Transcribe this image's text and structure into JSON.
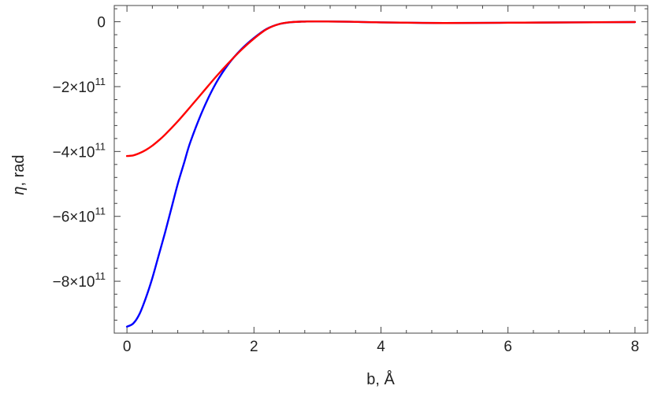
{
  "chart_data": {
    "type": "line",
    "xlabel": "b, Å",
    "ylabel_symbol": "η",
    "ylabel_rest": ", rad",
    "xlim": [
      -0.2,
      8.2
    ],
    "ylim": [
      -960000000000.0,
      50000000000.0
    ],
    "x_ticks": [
      {
        "value": 0,
        "label": "0"
      },
      {
        "value": 2,
        "label": "2"
      },
      {
        "value": 4,
        "label": "4"
      },
      {
        "value": 6,
        "label": "6"
      },
      {
        "value": 8,
        "label": "8"
      }
    ],
    "y_ticks": [
      {
        "value": 0,
        "label": "0"
      },
      {
        "value": -200000000000.0,
        "mantissa": "−2",
        "base": "×10",
        "exp": "11"
      },
      {
        "value": -400000000000.0,
        "mantissa": "−4",
        "base": "×10",
        "exp": "11"
      },
      {
        "value": -600000000000.0,
        "mantissa": "−6",
        "base": "×10",
        "exp": "11"
      },
      {
        "value": -800000000000.0,
        "mantissa": "−8",
        "base": "×10",
        "exp": "11"
      }
    ],
    "grid": false,
    "series": [
      {
        "color": "#0000ff",
        "x": [
          0,
          0.1,
          0.2,
          0.3,
          0.4,
          0.5,
          0.6,
          0.7,
          0.8,
          0.9,
          1.0,
          1.2,
          1.4,
          1.6,
          1.8,
          2.0,
          2.2,
          2.4,
          2.6,
          2.8,
          3.0,
          3.5,
          4.0,
          5.0,
          6.0,
          7.0,
          8.0
        ],
        "y": [
          -940000000000.0,
          -930000000000.0,
          -900000000000.0,
          -850000000000.0,
          -790000000000.0,
          -720000000000.0,
          -650000000000.0,
          -575000000000.0,
          -500000000000.0,
          -435000000000.0,
          -370000000000.0,
          -270000000000.0,
          -190000000000.0,
          -130000000000.0,
          -85000000000.0,
          -50000000000.0,
          -22000000000.0,
          -7000000000.0,
          -1000000000.0,
          500000000.0,
          1000000000.0,
          0.0,
          -2000000000.0,
          -4000000000.0,
          -3000000000.0,
          -2000000000.0,
          -1000000000.0
        ]
      },
      {
        "color": "#ff0000",
        "x": [
          0,
          0.1,
          0.2,
          0.3,
          0.4,
          0.5,
          0.6,
          0.8,
          1.0,
          1.2,
          1.4,
          1.6,
          1.8,
          2.0,
          2.2,
          2.4,
          2.6,
          2.8,
          3.0,
          3.5,
          4.0,
          5.0,
          6.0,
          7.0,
          8.0
        ],
        "y": [
          -414000000000.0,
          -412000000000.0,
          -405000000000.0,
          -395000000000.0,
          -382000000000.0,
          -366000000000.0,
          -348000000000.0,
          -307000000000.0,
          -262000000000.0,
          -216000000000.0,
          -170000000000.0,
          -127000000000.0,
          -87000000000.0,
          -52000000000.0,
          -23000000000.0,
          -7000000000.0,
          -1000000000.0,
          500000000.0,
          1000000000.0,
          0.0,
          -2000000000.0,
          -4000000000.0,
          -3000000000.0,
          -2000000000.0,
          -1000000000.0
        ]
      }
    ]
  }
}
